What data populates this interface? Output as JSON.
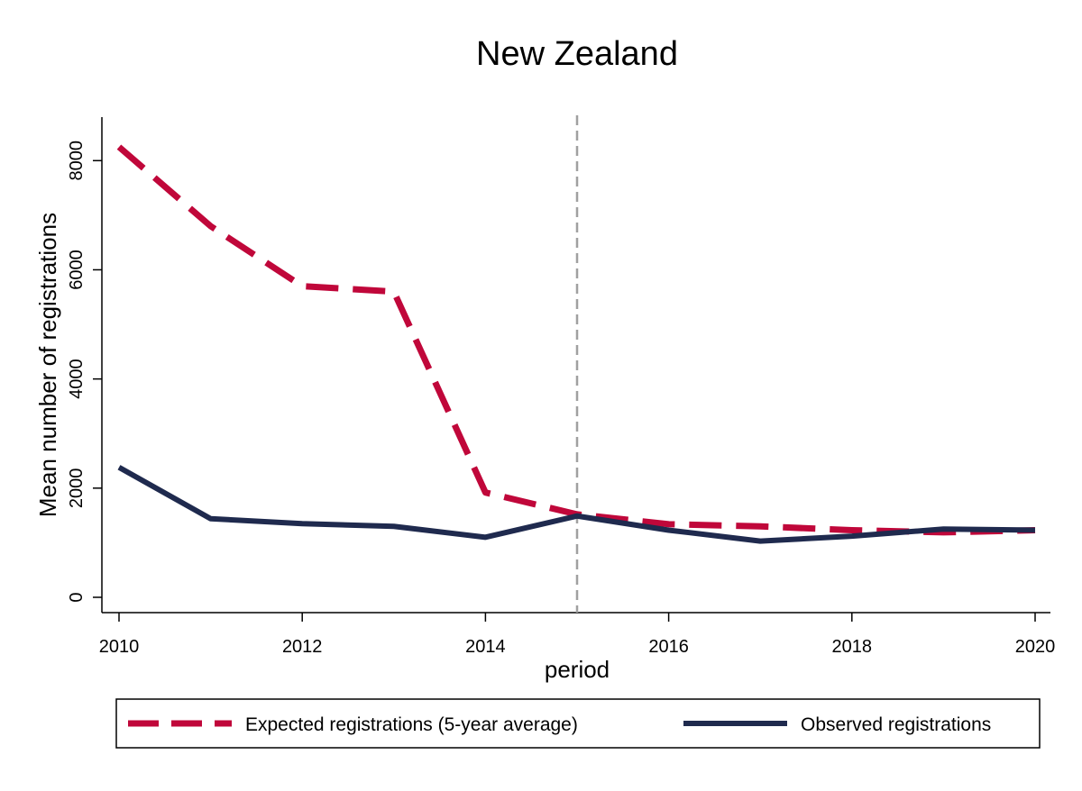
{
  "chart_data": {
    "type": "line",
    "title": "New Zealand",
    "xlabel": "period",
    "ylabel": "Mean number of registrations",
    "xlim": [
      2010,
      2020
    ],
    "ylim": [
      0,
      8500
    ],
    "x_ticks": [
      "2010",
      "2012",
      "2014",
      "2016",
      "2018",
      "2020"
    ],
    "y_ticks": [
      "0",
      "2000",
      "4000",
      "6000",
      "8000"
    ],
    "grid": false,
    "reference_line": {
      "x": 2015,
      "style": "dashed",
      "color": "#a0a0a0"
    },
    "legend_position": "bottom",
    "x": [
      2010,
      2011,
      2012,
      2013,
      2014,
      2015,
      2016,
      2017,
      2018,
      2019,
      2020
    ],
    "series": [
      {
        "name": "Expected registrations (5-year average)",
        "style": "dashed",
        "color": "#c0073a",
        "values": [
          8250,
          6800,
          5700,
          5600,
          1920,
          1520,
          1340,
          1300,
          1230,
          1190,
          1230
        ]
      },
      {
        "name": "Observed registrations",
        "style": "solid",
        "color": "#1f2a4e",
        "values": [
          2380,
          1440,
          1350,
          1300,
          1100,
          1490,
          1230,
          1030,
          1120,
          1250,
          1230
        ]
      }
    ]
  }
}
